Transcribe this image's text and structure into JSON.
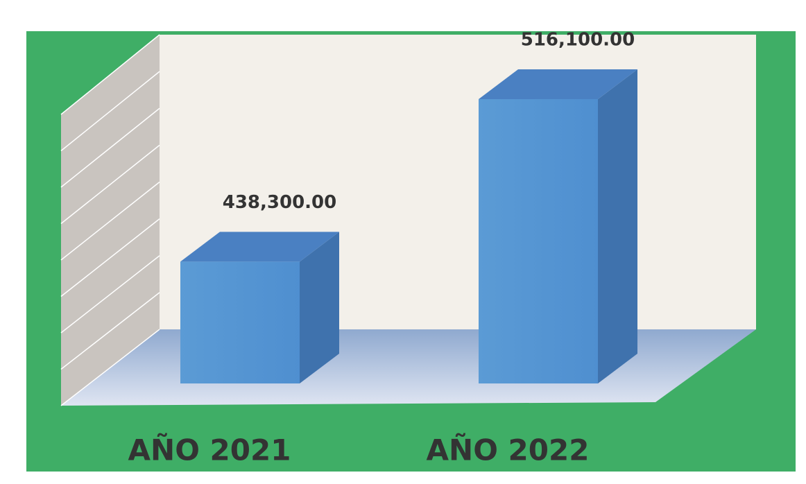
{
  "chart_data": {
    "type": "bar3d",
    "categories": [
      "AÑO 2021",
      "AÑO 2022"
    ],
    "values": [
      438300,
      516100
    ],
    "value_labels": [
      "438,300.00",
      "516,100.00"
    ],
    "color": "#5b9bd5",
    "ylim": [
      380000,
      540000
    ],
    "yticks": [
      380000,
      400000,
      420000,
      440000,
      460000,
      480000,
      500000,
      520000,
      540000
    ],
    "grid": true
  }
}
